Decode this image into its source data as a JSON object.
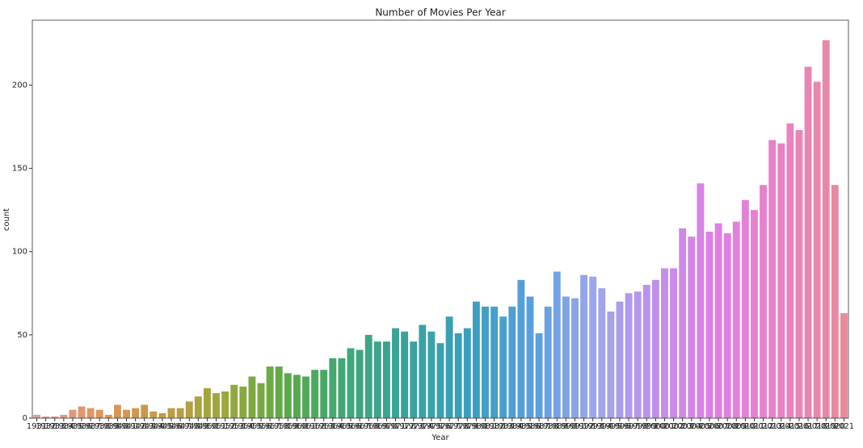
{
  "chart_data": {
    "type": "bar",
    "title": "Number of Movies Per Year",
    "x_label": "Year",
    "y_label": "count",
    "categories": [
      "1931",
      "1932",
      "1933",
      "1934",
      "1935",
      "1936",
      "1937",
      "1938",
      "1939",
      "1940",
      "1941",
      "1942",
      "1943",
      "1944",
      "1945",
      "1946",
      "1947",
      "1948",
      "1949",
      "1950",
      "1951",
      "1952",
      "1953",
      "1954",
      "1955",
      "1956",
      "1957",
      "1958",
      "1959",
      "1960",
      "1961",
      "1962",
      "1963",
      "1964",
      "1965",
      "1966",
      "1967",
      "1968",
      "1969",
      "1970",
      "1971",
      "1972",
      "1973",
      "1974",
      "1975",
      "1976",
      "1977",
      "1978",
      "1979",
      "1980",
      "1981",
      "1982",
      "1983",
      "1984",
      "1985",
      "1986",
      "1987",
      "1988",
      "1989",
      "1990",
      "1991",
      "1992",
      "1993",
      "1994",
      "1995",
      "1996",
      "1997",
      "1998",
      "1999",
      "2000",
      "2001",
      "2002",
      "2003",
      "2004",
      "2005",
      "2006",
      "2007",
      "2008",
      "2009",
      "2010",
      "2011",
      "2012",
      "2013",
      "2014",
      "2015",
      "2016",
      "2017",
      "2018",
      "2019",
      "2020",
      "2021"
    ],
    "values": [
      2,
      1,
      1,
      2,
      5,
      7,
      6,
      5,
      2,
      8,
      5,
      6,
      8,
      4,
      3,
      6,
      6,
      10,
      13,
      18,
      15,
      16,
      20,
      19,
      25,
      21,
      31,
      31,
      27,
      26,
      25,
      29,
      29,
      36,
      36,
      42,
      41,
      50,
      46,
      46,
      54,
      52,
      46,
      56,
      52,
      45,
      61,
      51,
      54,
      70,
      67,
      67,
      61,
      67,
      83,
      73,
      51,
      67,
      88,
      73,
      72,
      86,
      85,
      78,
      64,
      70,
      75,
      76,
      80,
      83,
      90,
      90,
      114,
      109,
      141,
      112,
      117,
      111,
      118,
      131,
      125,
      140,
      167,
      165,
      177,
      173,
      211,
      202,
      227,
      140,
      63
    ],
    "palette": [
      "#e99a9a",
      "#e0955c",
      "#c49a45",
      "#9ca83c",
      "#5caa48",
      "#3ea77a",
      "#3aa39c",
      "#3a9fc0",
      "#5a9fe0",
      "#a0a6ea",
      "#c090ec",
      "#e27ee4",
      "#e882c6",
      "#e88a9c"
    ],
    "ylim": [
      0,
      239
    ],
    "yticks": [
      0,
      50,
      100,
      150,
      200
    ]
  }
}
